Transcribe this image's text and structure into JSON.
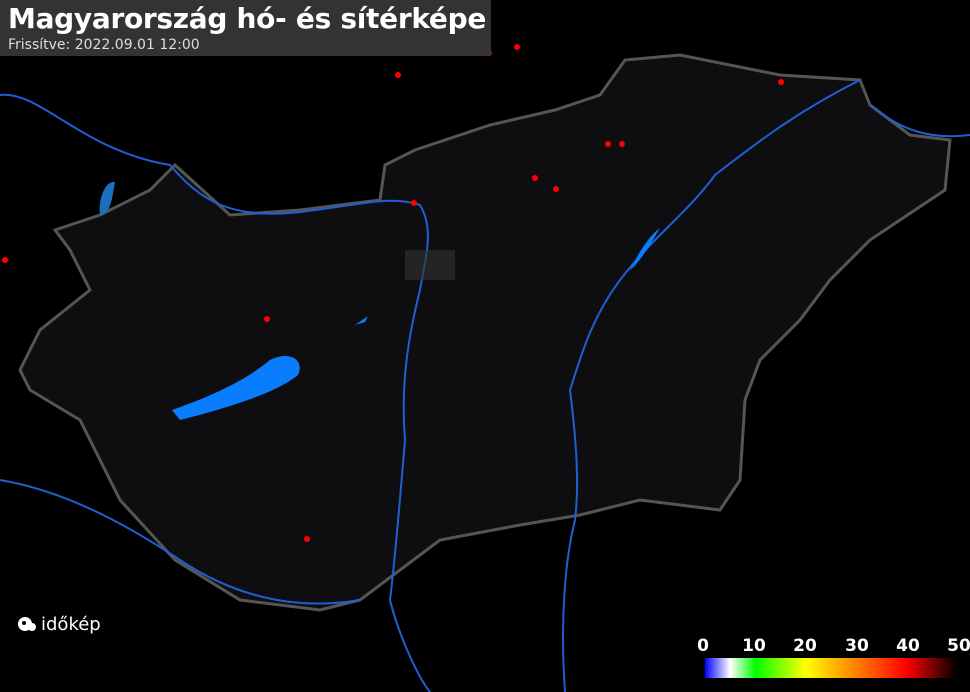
{
  "header": {
    "title": "Magyarország hó- és sítérképe",
    "updated": "Frissítve: 2022.09.01 12:00"
  },
  "logo": {
    "text": "időkép"
  },
  "legend": {
    "ticks": [
      "0",
      "10",
      "20",
      "30",
      "40",
      "50"
    ],
    "gradient": [
      "#0000ff",
      "#ffffff",
      "#00ff00",
      "#ffff00",
      "#ff8000",
      "#ff0000",
      "#000000"
    ]
  },
  "colors": {
    "background": "#000000",
    "country": "#0e0e10",
    "border": "#555555",
    "river": "#1f5fd0",
    "lake": "#0a7dff",
    "station": "#ff0000"
  },
  "stations_count_shown": 12
}
